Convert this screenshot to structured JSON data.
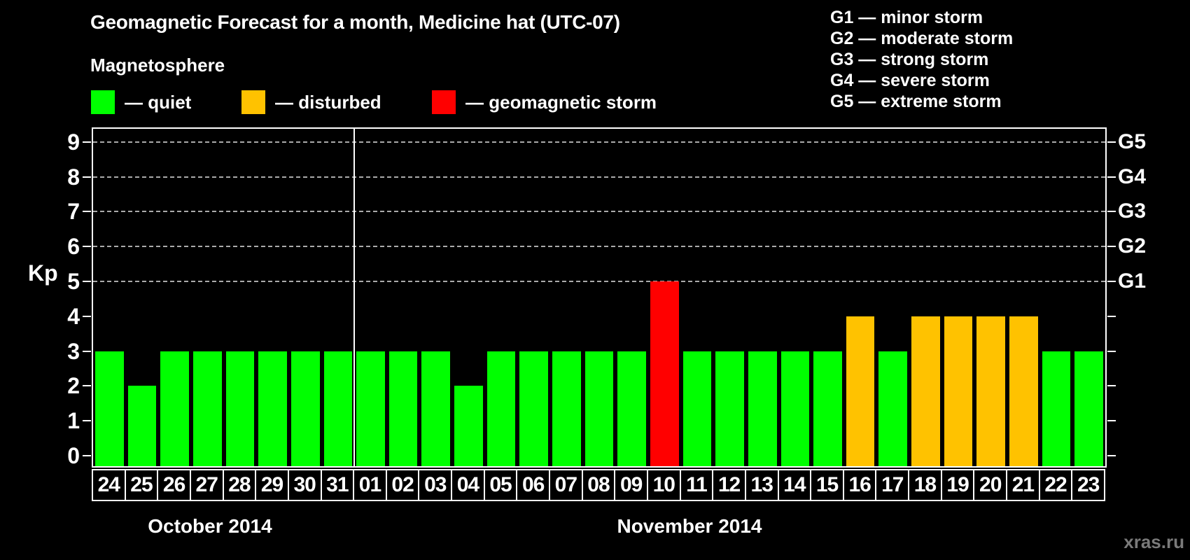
{
  "title": "Geomagnetic Forecast for a month, Medicine hat (UTC-07)",
  "subtitle": "Magnetosphere",
  "watermark": "xras.ru",
  "colors": {
    "background": "#000000",
    "axis": "#ffffff",
    "grid": "#aaaaaa",
    "quiet": "#00ff00",
    "disturbed": "#ffc200",
    "storm": "#ff0000",
    "watermark_text": "#7a7a7a"
  },
  "legend": {
    "items": [
      {
        "key": "quiet",
        "label": "— quiet",
        "color": "#00ff00"
      },
      {
        "key": "disturbed",
        "label": "— disturbed",
        "color": "#ffc200"
      },
      {
        "key": "storm",
        "label": "— geomagnetic storm",
        "color": "#ff0000"
      }
    ]
  },
  "g_scale_legend": [
    {
      "code": "G1",
      "label": "minor storm"
    },
    {
      "code": "G2",
      "label": "moderate storm"
    },
    {
      "code": "G3",
      "label": "strong storm"
    },
    {
      "code": "G4",
      "label": "severe storm"
    },
    {
      "code": "G5",
      "label": "extreme storm"
    }
  ],
  "chart_data": {
    "type": "bar",
    "title": "Geomagnetic Forecast for a month, Medicine hat (UTC-07)",
    "ylabel": "Kp",
    "ylim": [
      0,
      9
    ],
    "yticks": [
      0,
      1,
      2,
      3,
      4,
      5,
      6,
      7,
      8,
      9
    ],
    "grid": true,
    "gridlines_kp": [
      5,
      6,
      7,
      8,
      9
    ],
    "right_axis_labels": [
      {
        "kp": 5,
        "label": "G1"
      },
      {
        "kp": 6,
        "label": "G2"
      },
      {
        "kp": 7,
        "label": "G3"
      },
      {
        "kp": 8,
        "label": "G4"
      },
      {
        "kp": 9,
        "label": "G5"
      }
    ],
    "status_colors": {
      "quiet": "#00ff00",
      "disturbed": "#ffc200",
      "storm": "#ff0000"
    },
    "groups": [
      {
        "label": "October 2014",
        "days": [
          "24",
          "25",
          "26",
          "27",
          "28",
          "29",
          "30",
          "31"
        ],
        "values": [
          3,
          2,
          3,
          3,
          3,
          3,
          3,
          3
        ],
        "statuses": [
          "quiet",
          "quiet",
          "quiet",
          "quiet",
          "quiet",
          "quiet",
          "quiet",
          "quiet"
        ]
      },
      {
        "label": "November 2014",
        "days": [
          "01",
          "02",
          "03",
          "04",
          "05",
          "06",
          "07",
          "08",
          "09",
          "10",
          "11",
          "12",
          "13",
          "14",
          "15",
          "16",
          "17",
          "18",
          "19",
          "20",
          "21",
          "22",
          "23"
        ],
        "values": [
          3,
          3,
          3,
          2,
          3,
          3,
          3,
          3,
          3,
          5,
          3,
          3,
          3,
          3,
          3,
          4,
          3,
          4,
          4,
          4,
          4,
          3,
          3
        ],
        "statuses": [
          "quiet",
          "quiet",
          "quiet",
          "quiet",
          "quiet",
          "quiet",
          "quiet",
          "quiet",
          "quiet",
          "storm",
          "quiet",
          "quiet",
          "quiet",
          "quiet",
          "quiet",
          "disturbed",
          "quiet",
          "disturbed",
          "disturbed",
          "disturbed",
          "disturbed",
          "quiet",
          "quiet"
        ]
      }
    ]
  }
}
